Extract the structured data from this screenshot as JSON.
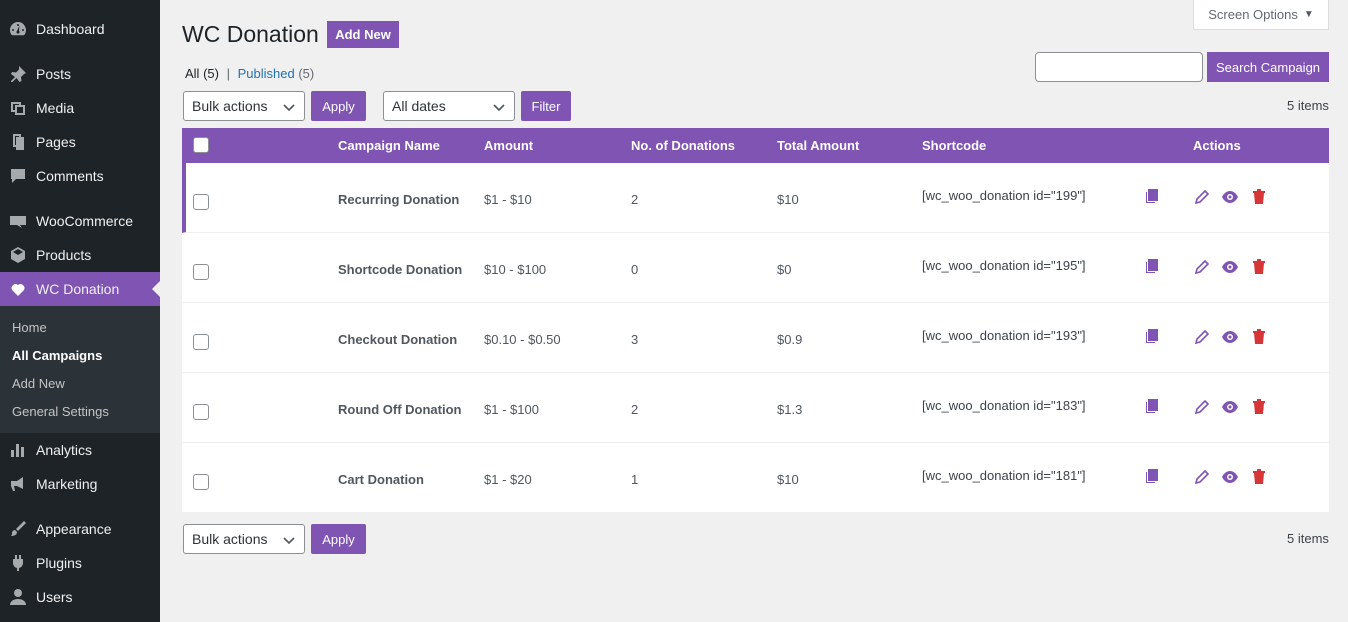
{
  "sidebar": {
    "items": [
      {
        "label": "Dashboard",
        "icon": "dashboard-icon"
      },
      {
        "label": "Posts",
        "icon": "pin-icon"
      },
      {
        "label": "Media",
        "icon": "media-icon"
      },
      {
        "label": "Pages",
        "icon": "pages-icon"
      },
      {
        "label": "Comments",
        "icon": "comment-icon"
      },
      {
        "label": "WooCommerce",
        "icon": "woo-icon"
      },
      {
        "label": "Products",
        "icon": "products-icon"
      },
      {
        "label": "WC Donation",
        "icon": "heart-icon"
      },
      {
        "label": "Analytics",
        "icon": "analytics-icon"
      },
      {
        "label": "Marketing",
        "icon": "megaphone-icon"
      },
      {
        "label": "Appearance",
        "icon": "brush-icon"
      },
      {
        "label": "Plugins",
        "icon": "plugin-icon"
      },
      {
        "label": "Users",
        "icon": "users-icon"
      }
    ],
    "submenu": [
      "Home",
      "All Campaigns",
      "Add New",
      "General Settings"
    ]
  },
  "header": {
    "title": "WC Donation",
    "add_new": "Add New",
    "screen_options": "Screen Options"
  },
  "filters": {
    "all_label": "All",
    "all_count": "(5)",
    "separator": "|",
    "published_label": "Published",
    "published_count": "(5)",
    "search_button": "Search Campaign",
    "bulk_actions": "Bulk actions",
    "apply": "Apply",
    "all_dates": "All dates",
    "filter": "Filter",
    "items_count": "5 items"
  },
  "table": {
    "columns": [
      "Campaign Name",
      "Amount",
      "No. of Donations",
      "Total Amount",
      "Shortcode",
      "Actions"
    ],
    "rows": [
      {
        "name": "Recurring Donation",
        "amount": "$1 - $10",
        "donations": "2",
        "total": "$10",
        "shortcode": "[wc_woo_donation id=\"199\"]"
      },
      {
        "name": "Shortcode Donation",
        "amount": "$10 - $100",
        "donations": "0",
        "total": "$0",
        "shortcode": "[wc_woo_donation id=\"195\"]"
      },
      {
        "name": "Checkout Donation",
        "amount": "$0.10 - $0.50",
        "donations": "3",
        "total": "$0.9",
        "shortcode": "[wc_woo_donation id=\"193\"]"
      },
      {
        "name": "Round Off Donation",
        "amount": "$1 - $100",
        "donations": "2",
        "total": "$1.3",
        "shortcode": "[wc_woo_donation id=\"183\"]"
      },
      {
        "name": "Cart Donation",
        "amount": "$1 - $20",
        "donations": "1",
        "total": "$10",
        "shortcode": "[wc_woo_donation id=\"181\"]"
      }
    ]
  },
  "colors": {
    "accent": "#7f54b3",
    "sidebar": "#1d2327",
    "delete": "#d63638"
  }
}
